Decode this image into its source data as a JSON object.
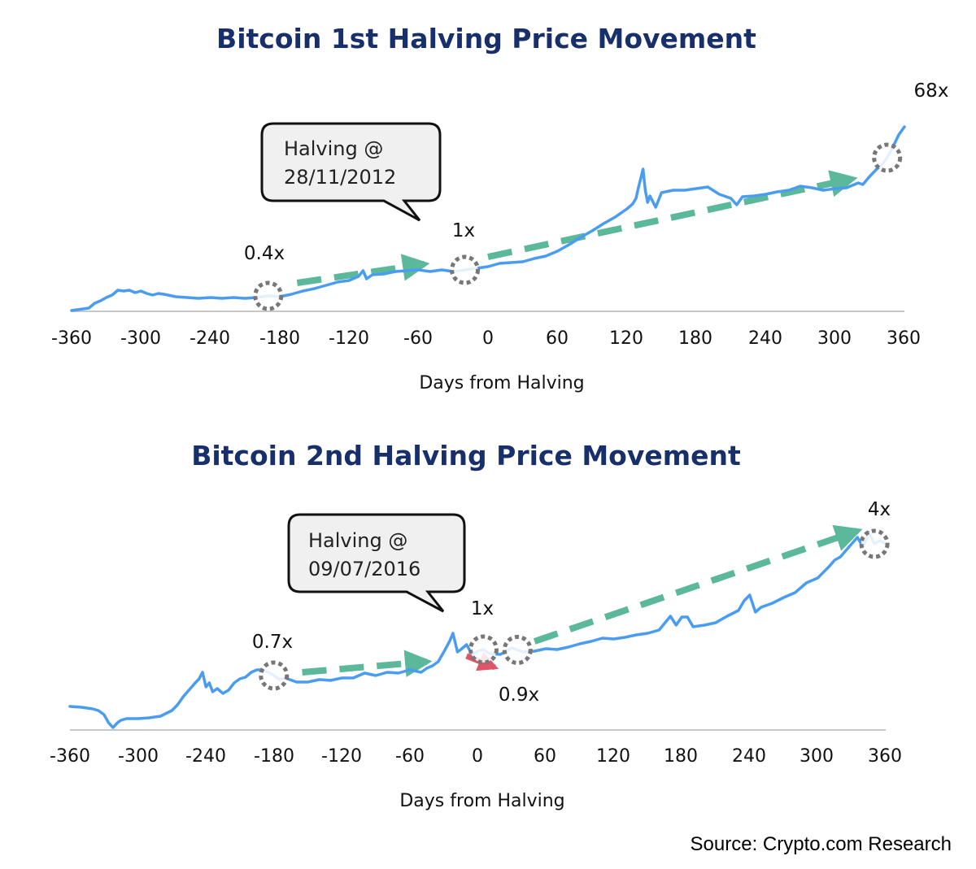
{
  "source": "Source: Crypto.com Research",
  "colors": {
    "title": "#17306b",
    "price_line": "#4a9cf0",
    "up_arrow": "#5cb89a",
    "down_arrow": "#e0546a",
    "marker": "#777777",
    "axis": "#c8c8c8",
    "callout_fill": "#f0f0f0"
  },
  "chart_data": [
    {
      "type": "line",
      "title": "Bitcoin 1st Halving Price Movement",
      "xlabel": "Days from Halving",
      "ylabel": "",
      "xlim": [
        -360,
        360
      ],
      "x_ticks": [
        "-360",
        "-300",
        "-240",
        "-180",
        "-120",
        "-60",
        "0",
        "60",
        "120",
        "180",
        "240",
        "300",
        "360"
      ],
      "y_axis_shown": false,
      "grid": false,
      "callout": {
        "line1": "Halving @",
        "line2": "28/11/2012"
      },
      "annotations": [
        {
          "label": "0.4x",
          "x": -190
        },
        {
          "label": "1x",
          "x": -20
        },
        {
          "label": "68x",
          "x": 345
        }
      ],
      "arrows": [
        {
          "from_x": -165,
          "to_x": -55,
          "direction": "up"
        },
        {
          "from_x": 0,
          "to_x": 315,
          "direction": "up"
        }
      ],
      "series": [
        {
          "x": [
            -360,
            -355,
            -350,
            -345,
            -340,
            -335,
            -330,
            -325,
            -320,
            -315,
            -310,
            -305,
            -300,
            -295,
            -290,
            -285,
            -280,
            -270,
            -260,
            -250,
            -240,
            -230,
            -220,
            -210,
            -200,
            -195,
            -190,
            -180,
            -170,
            -160,
            -150,
            -140,
            -130,
            -120,
            -112,
            -108,
            -105,
            -100,
            -90,
            -80,
            -70,
            -60,
            -50,
            -40,
            -30,
            -20,
            -10,
            0,
            10,
            20,
            30,
            40,
            50,
            60,
            70,
            80,
            90,
            100,
            110,
            120,
            125,
            128,
            130,
            132,
            134,
            136,
            138,
            140,
            145,
            150,
            160,
            170,
            180,
            190,
            200,
            210,
            215,
            220,
            230,
            240,
            250,
            260,
            270,
            280,
            290,
            300,
            310,
            320,
            324,
            330,
            336,
            340,
            345,
            350,
            355,
            360
          ],
          "y": [
            0,
            1,
            2,
            3,
            9,
            12,
            16,
            19,
            25,
            24,
            25,
            22,
            24,
            21,
            19,
            21,
            20,
            17,
            16,
            15,
            16,
            15,
            16,
            15,
            16,
            17,
            18,
            17,
            20,
            24,
            27,
            31,
            35,
            37,
            42,
            49,
            39,
            44,
            45,
            48,
            49,
            50,
            48,
            50,
            48,
            50,
            52,
            54,
            58,
            59,
            60,
            64,
            67,
            73,
            81,
            90,
            98,
            107,
            115,
            125,
            131,
            138,
            151,
            162,
            174,
            148,
            133,
            141,
            127,
            145,
            148,
            148,
            150,
            152,
            143,
            138,
            130,
            140,
            141,
            143,
            146,
            148,
            153,
            151,
            148,
            150,
            151,
            157,
            155,
            165,
            174,
            178,
            188,
            201,
            216,
            226
          ]
        }
      ]
    },
    {
      "type": "line",
      "title": "Bitcoin 2nd Halving Price Movement",
      "xlabel": "Days from Halving",
      "ylabel": "",
      "xlim": [
        -360,
        360
      ],
      "x_ticks": [
        "-360",
        "-300",
        "-240",
        "-180",
        "-120",
        "-60",
        "0",
        "60",
        "120",
        "180",
        "240",
        "300",
        "360"
      ],
      "y_axis_shown": false,
      "grid": false,
      "callout": {
        "line1": "Halving @",
        "line2": "09/07/2016"
      },
      "annotations": [
        {
          "label": "0.7x",
          "x": -180
        },
        {
          "label": "1x",
          "x": 5
        },
        {
          "label": "0.9x",
          "x": 35
        },
        {
          "label": "4x",
          "x": 350
        }
      ],
      "arrows": [
        {
          "from_x": -155,
          "to_x": -45,
          "direction": "up"
        },
        {
          "from_x": -10,
          "to_x": 15,
          "direction": "down"
        },
        {
          "from_x": 50,
          "to_x": 335,
          "direction": "up"
        }
      ],
      "series": [
        {
          "x": [
            -360,
            -350,
            -340,
            -335,
            -330,
            -326,
            -322,
            -318,
            -315,
            -310,
            -300,
            -290,
            -280,
            -270,
            -265,
            -260,
            -255,
            -250,
            -246,
            -243,
            -240,
            -237,
            -234,
            -230,
            -225,
            -220,
            -215,
            -210,
            -205,
            -200,
            -195,
            -190,
            -185,
            -180,
            -175,
            -170,
            -160,
            -150,
            -140,
            -130,
            -120,
            -110,
            -100,
            -90,
            -80,
            -70,
            -60,
            -50,
            -45,
            -40,
            -35,
            -30,
            -25,
            -22,
            -20,
            -18,
            -15,
            -10,
            -5,
            0,
            5,
            10,
            20,
            30,
            40,
            50,
            60,
            70,
            80,
            90,
            100,
            110,
            120,
            130,
            140,
            150,
            160,
            170,
            175,
            180,
            185,
            190,
            200,
            210,
            220,
            230,
            235,
            240,
            245,
            250,
            260,
            270,
            280,
            290,
            300,
            310,
            315,
            320,
            325,
            330,
            335,
            340,
            345,
            350,
            355,
            360
          ],
          "y": [
            28,
            27,
            25,
            23,
            18,
            8,
            2,
            8,
            11,
            13,
            13,
            14,
            16,
            23,
            30,
            40,
            48,
            56,
            62,
            70,
            52,
            57,
            46,
            50,
            44,
            48,
            57,
            62,
            64,
            70,
            73,
            73,
            70,
            66,
            61,
            63,
            58,
            58,
            61,
            60,
            63,
            63,
            69,
            66,
            70,
            69,
            73,
            70,
            75,
            78,
            83,
            95,
            108,
            118,
            107,
            95,
            98,
            104,
            92,
            96,
            98,
            93,
            92,
            100,
            95,
            96,
            99,
            98,
            101,
            105,
            108,
            112,
            111,
            113,
            116,
            118,
            122,
            139,
            128,
            138,
            138,
            126,
            128,
            131,
            139,
            146,
            158,
            165,
            144,
            150,
            155,
            162,
            168,
            180,
            186,
            200,
            208,
            212,
            220,
            228,
            236,
            224,
            242,
            228,
            232,
            228
          ]
        }
      ]
    }
  ]
}
